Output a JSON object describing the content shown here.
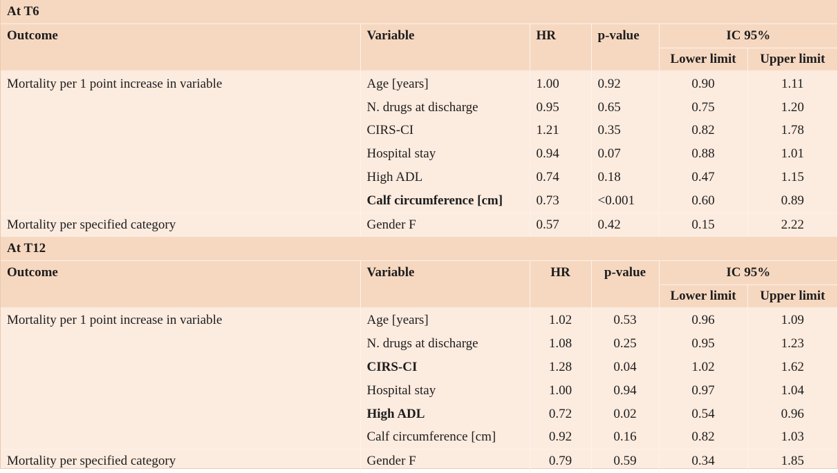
{
  "sections": [
    {
      "title": "At T6",
      "headers": {
        "outcome": "Outcome",
        "variable": "Variable",
        "hr": "HR",
        "p": "p-value",
        "ic": "IC 95%",
        "lower": "Lower limit",
        "upper": "Upper limit"
      },
      "rows": [
        {
          "outcome": "Mortality per 1 point increase in variable",
          "variable": "Age [years]",
          "hr": "1.00",
          "p": "0.92",
          "lower": "0.90",
          "upper": "1.11",
          "bold": false
        },
        {
          "outcome": "",
          "variable": "N. drugs at discharge",
          "hr": "0.95",
          "p": "0.65",
          "lower": "0.75",
          "upper": "1.20",
          "bold": false
        },
        {
          "outcome": "",
          "variable": "CIRS-CI",
          "hr": "1.21",
          "p": "0.35",
          "lower": "0.82",
          "upper": "1.78",
          "bold": false
        },
        {
          "outcome": "",
          "variable": "Hospital stay",
          "hr": "0.94",
          "p": "0.07",
          "lower": "0.88",
          "upper": "1.01",
          "bold": false
        },
        {
          "outcome": "",
          "variable": "High ADL",
          "hr": "0.74",
          "p": "0.18",
          "lower": "0.47",
          "upper": "1.15",
          "bold": false
        },
        {
          "outcome": "",
          "variable": "Calf circumference [cm]",
          "hr": "0.73",
          "p": "<0.001",
          "lower": "0.60",
          "upper": "0.89",
          "bold": true
        },
        {
          "outcome": "Mortality per specified category",
          "variable": "Gender F",
          "hr": "0.57",
          "p": "0.42",
          "lower": "0.15",
          "upper": "2.22",
          "bold": false
        }
      ]
    },
    {
      "title": "At T12",
      "headers": {
        "outcome": "Outcome",
        "variable": "Variable",
        "hr": "HR",
        "p": "p-value",
        "ic": "IC 95%",
        "lower": "Lower limit",
        "upper": "Upper limit"
      },
      "rows": [
        {
          "outcome": "Mortality per 1 point increase in variable",
          "variable": "Age [years]",
          "hr": "1.02",
          "p": "0.53",
          "lower": "0.96",
          "upper": "1.09",
          "bold": false
        },
        {
          "outcome": "",
          "variable": "N. drugs at discharge",
          "hr": "1.08",
          "p": "0.25",
          "lower": "0.95",
          "upper": "1.23",
          "bold": false
        },
        {
          "outcome": "",
          "variable": "CIRS-CI",
          "hr": "1.28",
          "p": "0.04",
          "lower": "1.02",
          "upper": "1.62",
          "bold": true
        },
        {
          "outcome": "",
          "variable": "Hospital stay",
          "hr": "1.00",
          "p": "0.94",
          "lower": "0.97",
          "upper": "1.04",
          "bold": false
        },
        {
          "outcome": "",
          "variable": "High ADL",
          "hr": "0.72",
          "p": "0.02",
          "lower": "0.54",
          "upper": "0.96",
          "bold": true
        },
        {
          "outcome": "",
          "variable": "Calf circumference [cm]",
          "hr": "0.92",
          "p": "0.16",
          "lower": "0.82",
          "upper": "1.03",
          "bold": false
        },
        {
          "outcome": "Mortality per specified category",
          "variable": "Gender F",
          "hr": "0.79",
          "p": "0.59",
          "lower": "0.34",
          "upper": "1.85",
          "bold": false
        }
      ]
    }
  ]
}
